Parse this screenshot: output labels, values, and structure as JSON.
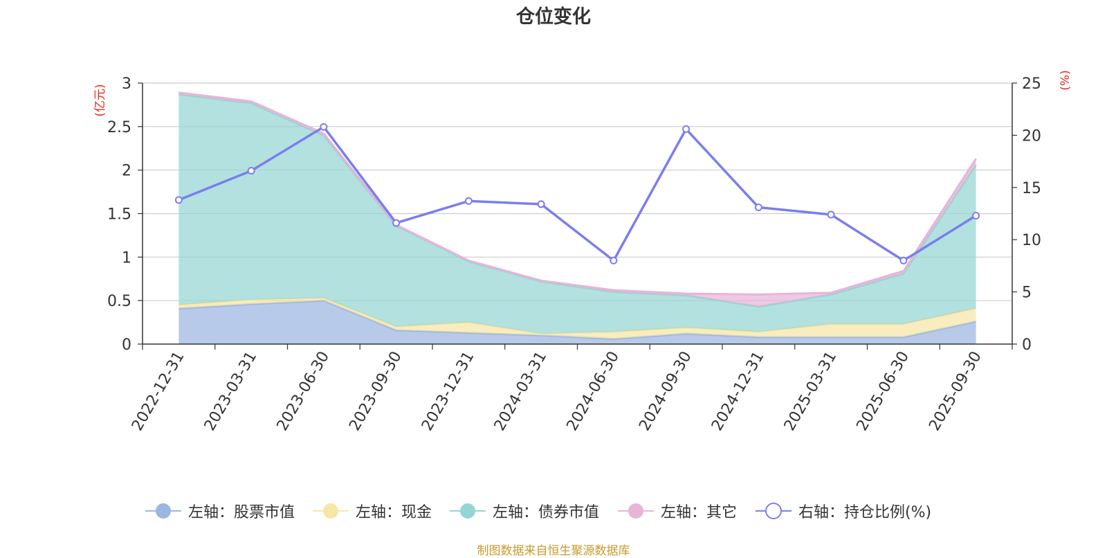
{
  "chart_data": {
    "type": "area",
    "title": "仓位变化",
    "categories": [
      "2022-12-31",
      "2023-03-31",
      "2023-06-30",
      "2023-09-30",
      "2023-12-31",
      "2024-03-31",
      "2024-06-30",
      "2024-09-30",
      "2024-12-31",
      "2025-03-31",
      "2025-06-30",
      "2025-09-30"
    ],
    "left_axis": {
      "unit_label": "(亿元)",
      "ylim": [
        0,
        3
      ],
      "ticks": [
        "0",
        "0.5",
        "1",
        "1.5",
        "2",
        "2.5",
        "3"
      ]
    },
    "right_axis": {
      "unit_label": "(%)",
      "ylim": [
        0,
        25
      ],
      "ticks": [
        "0",
        "5",
        "10",
        "15",
        "20",
        "25"
      ]
    },
    "grid": true,
    "stacked": true,
    "series": [
      {
        "name": "左轴：股票市值",
        "type": "area",
        "axis": "left",
        "color": "#9bb6e0",
        "values": [
          0.41,
          0.46,
          0.5,
          0.16,
          0.13,
          0.1,
          0.06,
          0.12,
          0.08,
          0.08,
          0.08,
          0.26
        ]
      },
      {
        "name": "左轴：现金",
        "type": "area",
        "axis": "left",
        "color": "#f7e6a6",
        "values": [
          0.04,
          0.05,
          0.03,
          0.04,
          0.12,
          0.02,
          0.08,
          0.07,
          0.06,
          0.15,
          0.15,
          0.15
        ]
      },
      {
        "name": "左轴：债券市值",
        "type": "area",
        "axis": "left",
        "color": "#95d5d3",
        "values": [
          2.42,
          2.26,
          1.87,
          1.16,
          0.7,
          0.6,
          0.46,
          0.37,
          0.29,
          0.34,
          0.58,
          1.65
        ]
      },
      {
        "name": "左轴：其它",
        "type": "area",
        "axis": "left",
        "color": "#e8b4d8",
        "values": [
          0.02,
          0.02,
          0.02,
          0.01,
          0.01,
          0.01,
          0.02,
          0.02,
          0.14,
          0.02,
          0.03,
          0.07
        ]
      },
      {
        "name": "右轴：持仓比例(%)",
        "type": "line",
        "axis": "right",
        "color": "#7b7df0",
        "values": [
          13.8,
          16.6,
          20.8,
          11.6,
          13.7,
          13.4,
          8.0,
          20.6,
          13.1,
          12.4,
          8.0,
          12.3
        ]
      }
    ],
    "legend_position": "bottom"
  },
  "source_note": "制图数据来自恒生聚源数据库"
}
